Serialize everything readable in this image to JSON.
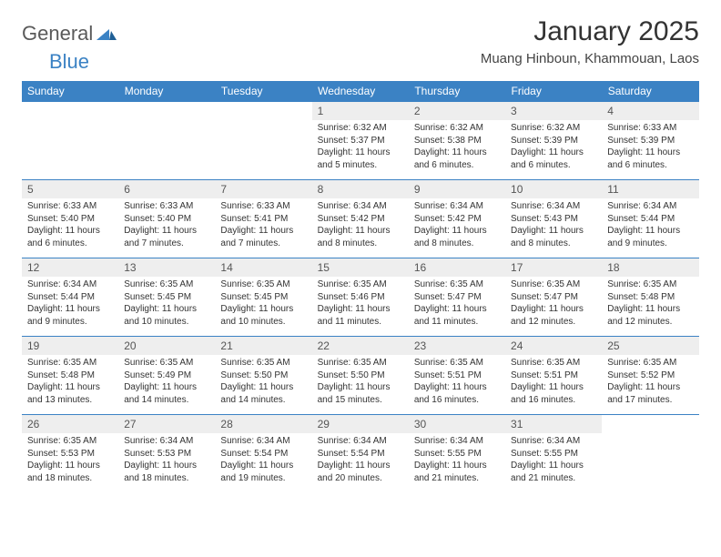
{
  "brand": {
    "part1": "General",
    "part2": "Blue"
  },
  "title": "January 2025",
  "location": "Muang Hinboun, Khammouan, Laos",
  "colors": {
    "header_bg": "#3b82c4",
    "header_text": "#ffffff",
    "daynum_bg": "#eeeeee",
    "border": "#3b82c4",
    "background": "#ffffff",
    "text": "#333333"
  },
  "weekdays": [
    "Sunday",
    "Monday",
    "Tuesday",
    "Wednesday",
    "Thursday",
    "Friday",
    "Saturday"
  ],
  "weeks": [
    [
      null,
      null,
      null,
      {
        "n": "1",
        "sr": "6:32 AM",
        "ss": "5:37 PM",
        "dl": "11 hours and 5 minutes."
      },
      {
        "n": "2",
        "sr": "6:32 AM",
        "ss": "5:38 PM",
        "dl": "11 hours and 6 minutes."
      },
      {
        "n": "3",
        "sr": "6:32 AM",
        "ss": "5:39 PM",
        "dl": "11 hours and 6 minutes."
      },
      {
        "n": "4",
        "sr": "6:33 AM",
        "ss": "5:39 PM",
        "dl": "11 hours and 6 minutes."
      }
    ],
    [
      {
        "n": "5",
        "sr": "6:33 AM",
        "ss": "5:40 PM",
        "dl": "11 hours and 6 minutes."
      },
      {
        "n": "6",
        "sr": "6:33 AM",
        "ss": "5:40 PM",
        "dl": "11 hours and 7 minutes."
      },
      {
        "n": "7",
        "sr": "6:33 AM",
        "ss": "5:41 PM",
        "dl": "11 hours and 7 minutes."
      },
      {
        "n": "8",
        "sr": "6:34 AM",
        "ss": "5:42 PM",
        "dl": "11 hours and 8 minutes."
      },
      {
        "n": "9",
        "sr": "6:34 AM",
        "ss": "5:42 PM",
        "dl": "11 hours and 8 minutes."
      },
      {
        "n": "10",
        "sr": "6:34 AM",
        "ss": "5:43 PM",
        "dl": "11 hours and 8 minutes."
      },
      {
        "n": "11",
        "sr": "6:34 AM",
        "ss": "5:44 PM",
        "dl": "11 hours and 9 minutes."
      }
    ],
    [
      {
        "n": "12",
        "sr": "6:34 AM",
        "ss": "5:44 PM",
        "dl": "11 hours and 9 minutes."
      },
      {
        "n": "13",
        "sr": "6:35 AM",
        "ss": "5:45 PM",
        "dl": "11 hours and 10 minutes."
      },
      {
        "n": "14",
        "sr": "6:35 AM",
        "ss": "5:45 PM",
        "dl": "11 hours and 10 minutes."
      },
      {
        "n": "15",
        "sr": "6:35 AM",
        "ss": "5:46 PM",
        "dl": "11 hours and 11 minutes."
      },
      {
        "n": "16",
        "sr": "6:35 AM",
        "ss": "5:47 PM",
        "dl": "11 hours and 11 minutes."
      },
      {
        "n": "17",
        "sr": "6:35 AM",
        "ss": "5:47 PM",
        "dl": "11 hours and 12 minutes."
      },
      {
        "n": "18",
        "sr": "6:35 AM",
        "ss": "5:48 PM",
        "dl": "11 hours and 12 minutes."
      }
    ],
    [
      {
        "n": "19",
        "sr": "6:35 AM",
        "ss": "5:48 PM",
        "dl": "11 hours and 13 minutes."
      },
      {
        "n": "20",
        "sr": "6:35 AM",
        "ss": "5:49 PM",
        "dl": "11 hours and 14 minutes."
      },
      {
        "n": "21",
        "sr": "6:35 AM",
        "ss": "5:50 PM",
        "dl": "11 hours and 14 minutes."
      },
      {
        "n": "22",
        "sr": "6:35 AM",
        "ss": "5:50 PM",
        "dl": "11 hours and 15 minutes."
      },
      {
        "n": "23",
        "sr": "6:35 AM",
        "ss": "5:51 PM",
        "dl": "11 hours and 16 minutes."
      },
      {
        "n": "24",
        "sr": "6:35 AM",
        "ss": "5:51 PM",
        "dl": "11 hours and 16 minutes."
      },
      {
        "n": "25",
        "sr": "6:35 AM",
        "ss": "5:52 PM",
        "dl": "11 hours and 17 minutes."
      }
    ],
    [
      {
        "n": "26",
        "sr": "6:35 AM",
        "ss": "5:53 PM",
        "dl": "11 hours and 18 minutes."
      },
      {
        "n": "27",
        "sr": "6:34 AM",
        "ss": "5:53 PM",
        "dl": "11 hours and 18 minutes."
      },
      {
        "n": "28",
        "sr": "6:34 AM",
        "ss": "5:54 PM",
        "dl": "11 hours and 19 minutes."
      },
      {
        "n": "29",
        "sr": "6:34 AM",
        "ss": "5:54 PM",
        "dl": "11 hours and 20 minutes."
      },
      {
        "n": "30",
        "sr": "6:34 AM",
        "ss": "5:55 PM",
        "dl": "11 hours and 21 minutes."
      },
      {
        "n": "31",
        "sr": "6:34 AM",
        "ss": "5:55 PM",
        "dl": "11 hours and 21 minutes."
      },
      null
    ]
  ],
  "labels": {
    "sunrise": "Sunrise:",
    "sunset": "Sunset:",
    "daylight": "Daylight:"
  }
}
